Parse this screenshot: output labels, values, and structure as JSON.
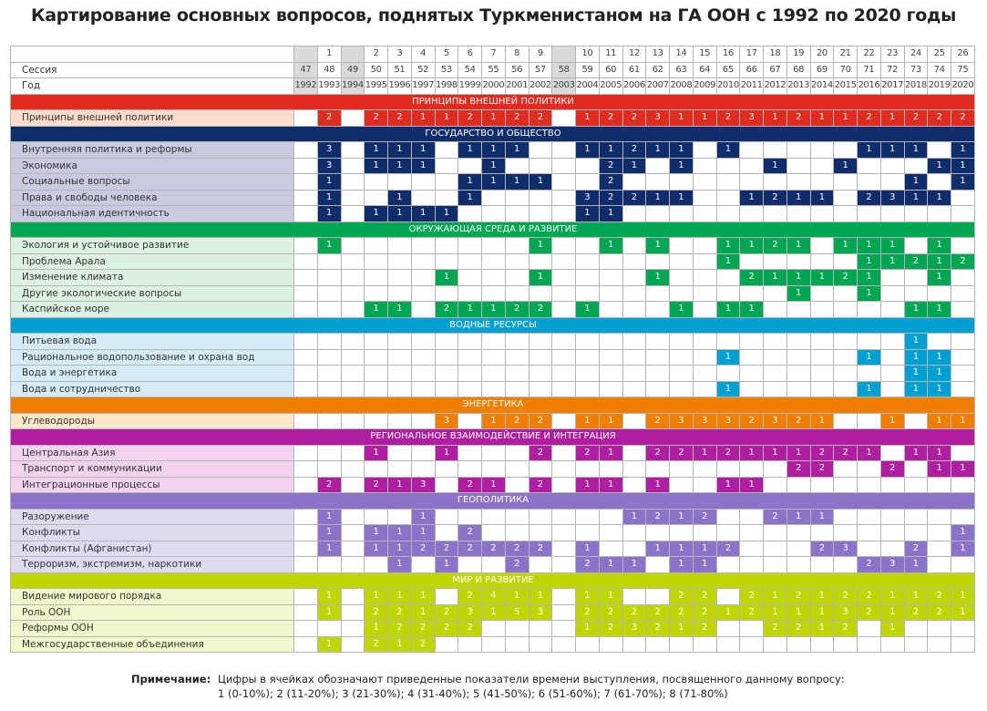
{
  "title": "Картирование основных вопросов, поднятых Туркменистаном на ГА ООН с 1992 по 2020 годы",
  "header": {
    "number_label": "",
    "session_label": "Сессия",
    "year_label": "Год",
    "numbers": [
      "",
      "1",
      "",
      "2",
      "3",
      "4",
      "5",
      "6",
      "7",
      "8",
      "9",
      "",
      "10",
      "11",
      "12",
      "13",
      "14",
      "15",
      "16",
      "17",
      "18",
      "19",
      "20",
      "21",
      "22",
      "23",
      "24",
      "25",
      "26"
    ],
    "sessions": [
      "47",
      "48",
      "49",
      "50",
      "51",
      "52",
      "53",
      "54",
      "55",
      "56",
      "57",
      "58",
      "59",
      "60",
      "61",
      "62",
      "63",
      "64",
      "65",
      "66",
      "67",
      "68",
      "69",
      "70",
      "71",
      "72",
      "73",
      "74",
      "75"
    ],
    "years": [
      "1992",
      "1993",
      "1994",
      "1995",
      "1996",
      "1997",
      "1998",
      "1999",
      "2000",
      "2001",
      "2002",
      "2003",
      "2004",
      "2005",
      "2006",
      "2007",
      "2008",
      "2009",
      "2010",
      "2011",
      "2012",
      "2013",
      "2014",
      "2015",
      "2016",
      "2017",
      "2018",
      "2019",
      "2020"
    ]
  },
  "chart_data": {
    "type": "heatmap",
    "title": "Картирование основных вопросов, поднятых Туркменистаном на ГА ООН с 1992 по 2020 годы",
    "x": [
      "1992",
      "1993",
      "1994",
      "1995",
      "1996",
      "1997",
      "1998",
      "1999",
      "2000",
      "2001",
      "2002",
      "2003",
      "2004",
      "2005",
      "2006",
      "2007",
      "2008",
      "2009",
      "2010",
      "2011",
      "2012",
      "2013",
      "2014",
      "2015",
      "2016",
      "2017",
      "2018",
      "2019",
      "2020"
    ],
    "empty_value": 0,
    "sections": [
      {
        "title": "ПРИНЦИПЫ ВНЕШНЕЙ ПОЛИТИКИ",
        "color": "#e02b20",
        "label_bg": "#fddccb",
        "rows": [
          {
            "label": "Принципы внешней политики",
            "values": [
              0,
              2,
              0,
              2,
              2,
              1,
              1,
              2,
              1,
              2,
              2,
              0,
              1,
              2,
              2,
              3,
              1,
              1,
              2,
              3,
              1,
              2,
              1,
              1,
              2,
              1,
              2,
              2,
              2
            ]
          }
        ]
      },
      {
        "title": "ГОСУДАРСТВО И ОБЩЕСТВО",
        "color": "#0f2d6b",
        "label_bg": "#c9cadf",
        "rows": [
          {
            "label": "Внутренняя политика и реформы",
            "values": [
              0,
              3,
              0,
              1,
              1,
              1,
              0,
              1,
              1,
              1,
              0,
              0,
              1,
              1,
              2,
              1,
              1,
              0,
              1,
              0,
              0,
              0,
              0,
              0,
              1,
              1,
              1,
              0,
              1
            ]
          },
          {
            "label": "Экономика",
            "values": [
              0,
              3,
              0,
              1,
              1,
              1,
              0,
              0,
              1,
              0,
              0,
              0,
              0,
              2,
              1,
              0,
              1,
              0,
              0,
              0,
              1,
              0,
              0,
              1,
              0,
              0,
              0,
              1,
              1
            ]
          },
          {
            "label": "Социальные вопросы",
            "values": [
              0,
              1,
              0,
              0,
              0,
              0,
              0,
              1,
              1,
              1,
              1,
              0,
              0,
              2,
              0,
              0,
              0,
              0,
              0,
              0,
              0,
              0,
              0,
              0,
              0,
              0,
              1,
              0,
              1
            ]
          },
          {
            "label": "Права и свободы человека",
            "values": [
              0,
              1,
              0,
              0,
              1,
              0,
              0,
              1,
              0,
              0,
              0,
              0,
              3,
              2,
              2,
              1,
              1,
              0,
              0,
              1,
              2,
              1,
              1,
              0,
              2,
              3,
              1,
              1,
              0
            ]
          },
          {
            "label": "Национальная идентичность",
            "values": [
              0,
              1,
              0,
              1,
              1,
              1,
              1,
              0,
              0,
              0,
              0,
              0,
              1,
              1,
              0,
              0,
              0,
              0,
              0,
              0,
              0,
              0,
              0,
              0,
              0,
              0,
              0,
              0,
              0
            ]
          }
        ]
      },
      {
        "title": "ОКРУЖАЮЩАЯ СРЕДА И РАЗВИТИЕ",
        "color": "#00a651",
        "label_bg": "#dcf1df",
        "rows": [
          {
            "label": "Экология и устойчивое развитие",
            "values": [
              0,
              1,
              0,
              0,
              0,
              0,
              0,
              0,
              0,
              0,
              1,
              0,
              0,
              1,
              0,
              1,
              0,
              0,
              1,
              1,
              2,
              1,
              0,
              1,
              1,
              1,
              0,
              1,
              0
            ]
          },
          {
            "label": "Проблема Арала",
            "values": [
              0,
              0,
              0,
              0,
              0,
              0,
              0,
              0,
              0,
              0,
              0,
              0,
              0,
              0,
              0,
              0,
              0,
              0,
              1,
              0,
              0,
              0,
              0,
              0,
              1,
              1,
              2,
              1,
              2
            ]
          },
          {
            "label": "Изменение климата",
            "values": [
              0,
              0,
              0,
              0,
              0,
              0,
              1,
              0,
              0,
              0,
              1,
              0,
              0,
              0,
              0,
              1,
              0,
              0,
              0,
              2,
              1,
              1,
              1,
              2,
              1,
              0,
              0,
              1,
              0
            ]
          },
          {
            "label": "Другие экологические вопросы",
            "values": [
              0,
              0,
              0,
              0,
              0,
              0,
              0,
              0,
              0,
              0,
              0,
              0,
              0,
              0,
              0,
              0,
              0,
              0,
              0,
              0,
              0,
              1,
              0,
              0,
              1,
              0,
              0,
              0,
              0
            ]
          },
          {
            "label": "Каспийское море",
            "values": [
              0,
              0,
              0,
              1,
              1,
              0,
              2,
              1,
              1,
              2,
              2,
              0,
              1,
              0,
              0,
              0,
              1,
              0,
              1,
              1,
              0,
              0,
              0,
              0,
              0,
              0,
              1,
              1,
              0
            ]
          }
        ]
      },
      {
        "title": "ВОДНЫЕ РЕСУРСЫ",
        "color": "#00a0d2",
        "label_bg": "#d5ebf6",
        "rows": [
          {
            "label": "Питьевая вода",
            "values": [
              0,
              0,
              0,
              0,
              0,
              0,
              0,
              0,
              0,
              0,
              0,
              0,
              0,
              0,
              0,
              0,
              0,
              0,
              0,
              0,
              0,
              0,
              0,
              0,
              0,
              0,
              1,
              0,
              0
            ]
          },
          {
            "label": "Рациональное водопользование и охрана вод",
            "values": [
              0,
              0,
              0,
              0,
              0,
              0,
              0,
              0,
              0,
              0,
              0,
              0,
              0,
              0,
              0,
              0,
              0,
              0,
              1,
              0,
              0,
              0,
              0,
              0,
              1,
              0,
              1,
              1,
              0
            ]
          },
          {
            "label": "Вода и энергетика",
            "values": [
              0,
              0,
              0,
              0,
              0,
              0,
              0,
              0,
              0,
              0,
              0,
              0,
              0,
              0,
              0,
              0,
              0,
              0,
              0,
              0,
              0,
              0,
              0,
              0,
              0,
              0,
              1,
              1,
              0
            ]
          },
          {
            "label": "Вода и сотрудничество",
            "values": [
              0,
              0,
              0,
              0,
              0,
              0,
              0,
              0,
              0,
              0,
              0,
              0,
              0,
              0,
              0,
              0,
              0,
              0,
              1,
              0,
              0,
              0,
              0,
              0,
              1,
              0,
              1,
              1,
              0
            ]
          }
        ]
      },
      {
        "title": "ЭНЕРГЕТИКА",
        "color": "#f07f00",
        "label_bg": "#fde6cb",
        "rows": [
          {
            "label": "Углеводороды",
            "values": [
              0,
              0,
              0,
              0,
              0,
              0,
              3,
              0,
              1,
              2,
              2,
              0,
              1,
              1,
              0,
              2,
              3,
              3,
              3,
              2,
              3,
              2,
              1,
              0,
              0,
              1,
              0,
              1,
              1
            ]
          }
        ]
      },
      {
        "title": "РЕГИОНАЛЬНОЕ  ВЗАИМОДЕЙСТВИЕ И  ИНТЕГРАЦИЯ",
        "color": "#b01ea0",
        "label_bg": "#f2d3ee",
        "rows": [
          {
            "label": "Центральная Азия",
            "values": [
              0,
              0,
              0,
              1,
              0,
              0,
              1,
              0,
              0,
              0,
              2,
              0,
              2,
              1,
              0,
              2,
              2,
              1,
              2,
              1,
              1,
              1,
              2,
              2,
              1,
              0,
              1,
              1,
              0
            ]
          },
          {
            "label": "Транспорт и коммуникации",
            "values": [
              0,
              0,
              0,
              0,
              0,
              0,
              0,
              0,
              0,
              0,
              0,
              0,
              0,
              0,
              0,
              0,
              0,
              0,
              0,
              0,
              0,
              2,
              2,
              0,
              0,
              2,
              0,
              1,
              1
            ]
          },
          {
            "label": "Интеграционные процессы",
            "values": [
              0,
              2,
              0,
              2,
              1,
              3,
              0,
              2,
              1,
              0,
              2,
              0,
              1,
              1,
              0,
              1,
              0,
              0,
              1,
              1,
              0,
              0,
              0,
              0,
              0,
              0,
              0,
              0,
              0
            ]
          }
        ]
      },
      {
        "title": "ГЕОПОЛИТИКА",
        "color": "#8a73c8",
        "label_bg": "#e0daf1",
        "rows": [
          {
            "label": "Разоружение",
            "values": [
              0,
              1,
              0,
              0,
              0,
              1,
              0,
              0,
              0,
              0,
              0,
              0,
              0,
              0,
              1,
              2,
              1,
              2,
              0,
              0,
              2,
              1,
              1,
              0,
              0,
              0,
              0,
              0,
              0
            ]
          },
          {
            "label": "Конфликты",
            "values": [
              0,
              1,
              0,
              1,
              1,
              1,
              0,
              2,
              0,
              0,
              0,
              0,
              0,
              0,
              0,
              0,
              0,
              0,
              0,
              0,
              0,
              0,
              0,
              0,
              0,
              0,
              0,
              0,
              1
            ]
          },
          {
            "label": "Конфликты (Афганистан)",
            "values": [
              0,
              1,
              0,
              1,
              1,
              2,
              2,
              2,
              2,
              2,
              2,
              0,
              1,
              0,
              0,
              1,
              1,
              1,
              2,
              0,
              0,
              0,
              2,
              3,
              0,
              0,
              2,
              0,
              1
            ]
          },
          {
            "label": "Терроризм, экстремизм, наркотики",
            "values": [
              0,
              0,
              0,
              0,
              1,
              0,
              1,
              0,
              0,
              2,
              0,
              0,
              2,
              1,
              1,
              0,
              1,
              1,
              0,
              0,
              0,
              0,
              0,
              0,
              2,
              3,
              1,
              0,
              0
            ]
          }
        ]
      },
      {
        "title": "МИР И РАЗВИТИЕ",
        "color": "#bfd600",
        "label_bg": "#f1f6cb",
        "rows": [
          {
            "label": "Видение мирового порядка",
            "values": [
              0,
              1,
              0,
              1,
              1,
              1,
              0,
              2,
              4,
              1,
              1,
              0,
              1,
              1,
              0,
              0,
              2,
              2,
              0,
              2,
              1,
              2,
              1,
              2,
              2,
              1,
              1,
              2,
              1
            ]
          },
          {
            "label": "Роль ООН",
            "values": [
              0,
              1,
              0,
              2,
              2,
              1,
              2,
              3,
              1,
              5,
              3,
              0,
              2,
              2,
              2,
              2,
              2,
              2,
              1,
              2,
              1,
              1,
              1,
              3,
              2,
              1,
              2,
              2,
              1
            ]
          },
          {
            "label": "Реформы ООН",
            "values": [
              0,
              0,
              0,
              1,
              2,
              2,
              2,
              2,
              0,
              0,
              0,
              0,
              1,
              2,
              3,
              2,
              1,
              2,
              0,
              0,
              2,
              2,
              1,
              2,
              0,
              1,
              0,
              0,
              0
            ]
          },
          {
            "label": "Межгосударственные объединения",
            "values": [
              0,
              1,
              0,
              2,
              1,
              2,
              0,
              0,
              0,
              0,
              0,
              0,
              0,
              0,
              0,
              0,
              0,
              0,
              0,
              0,
              0,
              0,
              0,
              0,
              0,
              0,
              0,
              0,
              0
            ]
          }
        ]
      }
    ]
  },
  "note": {
    "label": "Примечание:",
    "line1": "Цифры в ячейках обозначают приведенные показатели времени выступления, посвященного данному вопросу:",
    "line2": "1 (0-10%);  2 (11-20%);  3 (21-30%);  4 (31-40%);  5 (41-50%);  6 (51-60%);  7 (61-70%);  8 (71-80%)"
  }
}
